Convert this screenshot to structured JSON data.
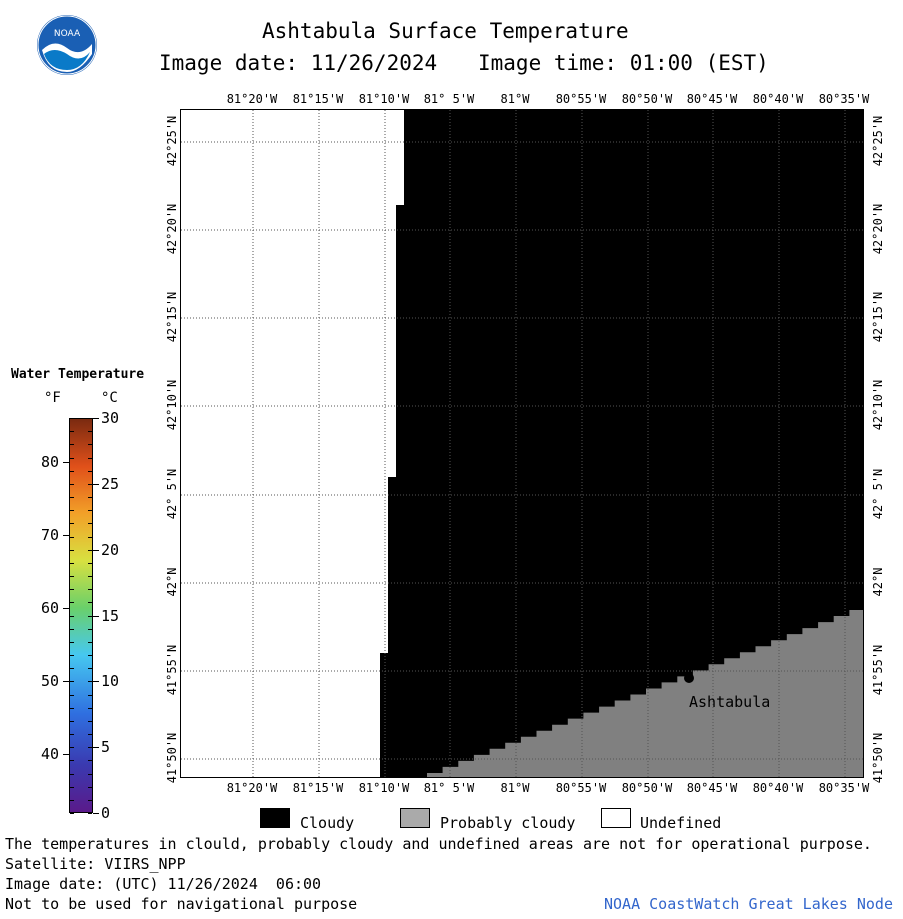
{
  "title": "Ashtabula Surface Temperature",
  "image_date_line": "Image date: 11/26/2024",
  "image_time_line": "Image time: 01:00 (EST)",
  "logo_text": "NOAA",
  "lon_labels": [
    "81°20'W",
    "81°15'W",
    "81°10'W",
    "81° 5'W",
    "81°W",
    "80°55'W",
    "80°50'W",
    "80°45'W",
    "80°40'W",
    "80°35'W"
  ],
  "lon_labels_bottom": [
    "81°20'W",
    "81°15'W",
    "81°10'W",
    "81° 5'W",
    "81°W",
    "80°55'W",
    "80°50'W",
    "80°45'W",
    "80°40'W",
    "80°35'W"
  ],
  "lat_labels": [
    "42°25'N",
    "42°20'N",
    "42°15'N",
    "42°10'N",
    "42° 5'N",
    "42°N",
    "41°55'N",
    "41°50'N"
  ],
  "place_label": "Ashtabula",
  "colorbar": {
    "title": "Water Temperature",
    "unit_f": "°F",
    "unit_c": "°C",
    "fahrenheit_ticks": [
      "80",
      "70",
      "60",
      "50",
      "40"
    ],
    "celsius_ticks": [
      "30",
      "25",
      "20",
      "15",
      "10",
      "5",
      "0"
    ]
  },
  "legend": {
    "cloudy": "Cloudy",
    "probably_cloudy": "Probably cloudy",
    "undefined": "Undefined",
    "cloudy_color": "#000000",
    "probably_cloudy_color": "#aaaaaa",
    "undefined_color": "#ffffff"
  },
  "footer": {
    "disclaimer": "The temperatures in clould, probably cloudy and undefined areas are not for operational purpose.",
    "satellite": "Satellite: VIIRS_NPP",
    "utc_date": "Image date: (UTC) 11/26/2024  06:00",
    "navigation": "Not to be used for navigational purpose",
    "credit": "NOAA CoastWatch Great Lakes Node",
    "credit_color": "#3366cc"
  },
  "colors": {
    "land": "#808080",
    "cloud": "#000000",
    "undefined": "#ffffff"
  }
}
